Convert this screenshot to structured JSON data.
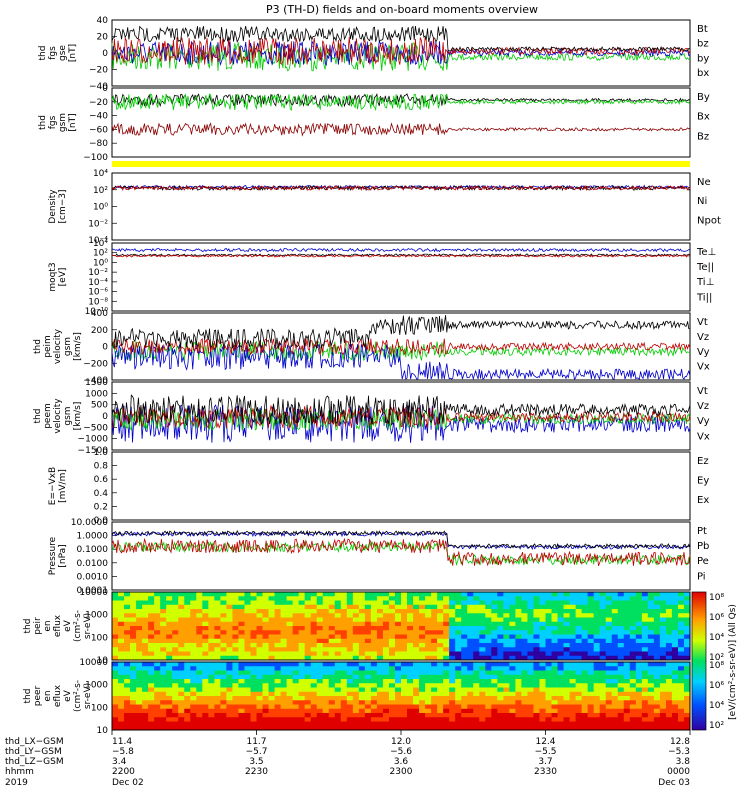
{
  "figure": {
    "title": "P3 (TH-D) fields and on-board moments overview",
    "year": "2019"
  },
  "colors": {
    "black": "#000000",
    "red": "#c00000",
    "green": "#00cc00",
    "blue": "#0000cc",
    "darkred": "#8b0000",
    "yellow": "#ffff00"
  },
  "chart_data": [
    {
      "type": "line",
      "id": "fgs_gse",
      "ylabel": [
        "thd",
        "fgs",
        "gse",
        "[nT]"
      ],
      "ylim": [
        -40,
        40
      ],
      "yticks": [
        "40",
        "20",
        "0",
        "−20",
        "−40"
      ],
      "series": [
        {
          "name": "Bt",
          "color": "#000000"
        },
        {
          "name": "bz",
          "color": "#c00000"
        },
        {
          "name": "by",
          "color": "#00cc00"
        },
        {
          "name": "bx",
          "color": "#0000cc"
        }
      ]
    },
    {
      "type": "line",
      "id": "fgs_gsm",
      "ylabel": [
        "thd",
        "fgs",
        "gsm",
        "[nT]"
      ],
      "ylim": [
        -100,
        0
      ],
      "yticks": [
        "0",
        "−20",
        "−40",
        "−60",
        "−80",
        "−100"
      ],
      "series": [
        {
          "name": "By",
          "color": "#00cc00"
        },
        {
          "name": "Bx",
          "color": "#000000"
        },
        {
          "name": "Bz",
          "color": "#8b0000"
        }
      ]
    },
    {
      "type": "line",
      "id": "density",
      "ylabel": [
        "Density",
        "[cm−3]"
      ],
      "yscale": "log",
      "ylim": [
        0.0001,
        10000
      ],
      "yticks": [
        "10⁴",
        "10²",
        "10⁰",
        "10⁻²",
        "10⁻⁴"
      ],
      "series": [
        {
          "name": "Ne",
          "color": "#c00000"
        },
        {
          "name": "Ni",
          "color": "#000000"
        },
        {
          "name": "Npot",
          "color": "#0000cc"
        }
      ]
    },
    {
      "type": "line",
      "id": "temperature",
      "ylabel": [
        "moqt3",
        "[eV]"
      ],
      "yscale": "log",
      "ylim": [
        1e-10,
        10000
      ],
      "yticks": [
        "10⁴",
        "10²",
        "10⁰",
        "10⁻²",
        "10⁻⁴",
        "10⁻⁶",
        "10⁻⁸",
        "10⁻¹⁰"
      ],
      "series": [
        {
          "name": "Te⊥",
          "color": "#c00000"
        },
        {
          "name": "Te||",
          "color": "#000000"
        },
        {
          "name": "Ti⊥",
          "color": "#0000cc"
        },
        {
          "name": "Ti||",
          "color": "#00cc00"
        }
      ]
    },
    {
      "type": "line",
      "id": "peim_velocity",
      "ylabel": [
        "thd",
        "peim",
        "velocity",
        "gsm",
        "[km/s]"
      ],
      "ylim": [
        -400,
        400
      ],
      "yticks": [
        "400",
        "200",
        "0",
        "−200",
        "−400"
      ],
      "series": [
        {
          "name": "Vt",
          "color": "#000000"
        },
        {
          "name": "Vz",
          "color": "#c00000"
        },
        {
          "name": "Vy",
          "color": "#00cc00"
        },
        {
          "name": "Vx",
          "color": "#0000cc"
        }
      ]
    },
    {
      "type": "line",
      "id": "peem_velocity",
      "ylabel": [
        "thd",
        "peem",
        "velocity",
        "gsm",
        "[km/s]"
      ],
      "ylim": [
        -1500,
        1500
      ],
      "yticks": [
        "1500",
        "1000",
        "500",
        "0",
        "−500",
        "−1000",
        "−1500"
      ],
      "series": [
        {
          "name": "Vt",
          "color": "#000000"
        },
        {
          "name": "Vz",
          "color": "#c00000"
        },
        {
          "name": "Vy",
          "color": "#00cc00"
        },
        {
          "name": "Vx",
          "color": "#0000cc"
        }
      ]
    },
    {
      "type": "line",
      "id": "e_field",
      "ylabel": [
        "E=−VxB",
        "[mV/m]"
      ],
      "ylim": [
        0,
        1.0
      ],
      "yticks": [
        "1.0",
        "0.8",
        "0.6",
        "0.4",
        "0.2",
        "0.0"
      ],
      "series": [
        {
          "name": "Ez",
          "color": "#c00000"
        },
        {
          "name": "Ey",
          "color": "#00cc00"
        },
        {
          "name": "Ex",
          "color": "#0000cc"
        }
      ]
    },
    {
      "type": "line",
      "id": "pressure",
      "ylabel": [
        "Pressure",
        "[nPa]"
      ],
      "yscale": "log",
      "ylim": [
        0.0001,
        10
      ],
      "yticks": [
        "10.0000",
        "1.0000",
        "0.1000",
        "0.0100",
        "0.0010",
        "0.0001"
      ],
      "series": [
        {
          "name": "Pt",
          "color": "#000000"
        },
        {
          "name": "Pb",
          "color": "#c00000"
        },
        {
          "name": "Pe",
          "color": "#00cc00"
        },
        {
          "name": "Pi",
          "color": "#0000cc"
        }
      ]
    },
    {
      "type": "heatmap",
      "id": "peir_spectrogram",
      "ylabel": [
        "thd",
        "peir",
        "en",
        "eflux",
        "eV",
        "(cm²-s-",
        "sr-eV)"
      ],
      "yscale": "log",
      "ylim": [
        10,
        10000
      ],
      "yticks": [
        "10000",
        "1000",
        "100",
        "10"
      ]
    },
    {
      "type": "heatmap",
      "id": "peer_spectrogram",
      "ylabel": [
        "thd",
        "peer",
        "en",
        "eflux",
        "eV",
        "(cm²-s-",
        "sr-eV)"
      ],
      "yscale": "log",
      "ylim": [
        10,
        10000
      ],
      "yticks": [
        "10000",
        "1000",
        "100",
        "10"
      ]
    }
  ],
  "colorbar": {
    "label": "[eV/(cm²-s-sr-eV)] (All Qs)",
    "upper_ticks": [
      "10⁸",
      "10⁶",
      "10⁴",
      "10²"
    ],
    "lower_ticks": [
      "10⁸",
      "10⁶",
      "10⁴",
      "10²"
    ]
  },
  "x_axis": {
    "row_labels": [
      "thd_LX−GSM",
      "thd_LY−GSM",
      "thd_LZ−GSM",
      "hhmm",
      "2019"
    ],
    "columns": [
      {
        "x": "11.4",
        "y": "−5.8",
        "z": "3.4",
        "hhmm": "2200",
        "date": "Dec 02"
      },
      {
        "x": "11.7",
        "y": "−5.7",
        "z": "3.5",
        "hhmm": "2230",
        "date": ""
      },
      {
        "x": "12.0",
        "y": "−5.6",
        "z": "3.6",
        "hhmm": "2300",
        "date": ""
      },
      {
        "x": "12.4",
        "y": "−5.5",
        "z": "3.7",
        "hhmm": "2330",
        "date": ""
      },
      {
        "x": "12.8",
        "y": "−5.3",
        "z": "3.8",
        "hhmm": "0000",
        "date": "Dec 03"
      }
    ]
  }
}
